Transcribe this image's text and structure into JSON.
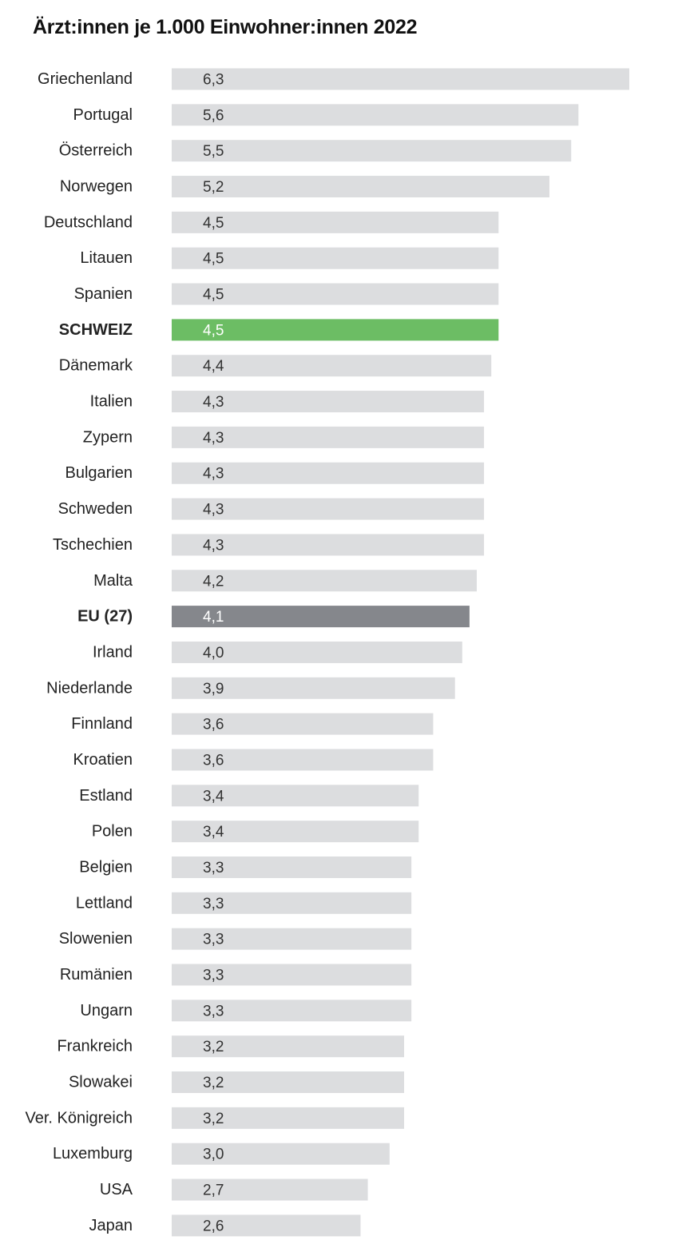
{
  "chart_data": {
    "type": "bar",
    "orientation": "horizontal",
    "title": "Ärzt:innen je 1.000 Einwohner:innen 2022",
    "xlabel": "",
    "ylabel": "",
    "xlim": [
      0,
      6.3
    ],
    "grid": false,
    "categories": [
      "Griechenland",
      "Portugal",
      "Österreich",
      "Norwegen",
      "Deutschland",
      "Litauen",
      "Spanien",
      "SCHWEIZ",
      "Dänemark",
      "Italien",
      "Zypern",
      "Bulgarien",
      "Schweden",
      "Tschechien",
      "Malta",
      "EU (27)",
      "Irland",
      "Niederlande",
      "Finnland",
      "Kroatien",
      "Estland",
      "Polen",
      "Belgien",
      "Lettland",
      "Slowenien",
      "Rumänien",
      "Ungarn",
      "Frankreich",
      "Slowakei",
      "Ver. Königreich",
      "Luxemburg",
      "USA",
      "Japan"
    ],
    "values": [
      6.3,
      5.6,
      5.5,
      5.2,
      4.5,
      4.5,
      4.5,
      4.5,
      4.4,
      4.3,
      4.3,
      4.3,
      4.3,
      4.3,
      4.2,
      4.1,
      4.0,
      3.9,
      3.6,
      3.6,
      3.4,
      3.4,
      3.3,
      3.3,
      3.3,
      3.3,
      3.3,
      3.2,
      3.2,
      3.2,
      3.0,
      2.7,
      2.6
    ],
    "value_labels": [
      "6,3",
      "5,6",
      "5,5",
      "5,2",
      "4,5",
      "4,5",
      "4,5",
      "4,5",
      "4,4",
      "4,3",
      "4,3",
      "4,3",
      "4,3",
      "4,3",
      "4,2",
      "4,1",
      "4,0",
      "3,9",
      "3,6",
      "3,6",
      "3,4",
      "3,4",
      "3,3",
      "3,3",
      "3,3",
      "3,3",
      "3,3",
      "3,2",
      "3,2",
      "3,2",
      "3,0",
      "2,7",
      "2,6"
    ],
    "highlights": {
      "SCHWEIZ": {
        "bar_color": "#6cbd64",
        "label_color": "#47a83c"
      },
      "EU (27)": {
        "bar_color": "#85878c",
        "label_color": "#111111"
      }
    },
    "colors": {
      "bar": "#dcdddf",
      "label": "#222222"
    }
  }
}
